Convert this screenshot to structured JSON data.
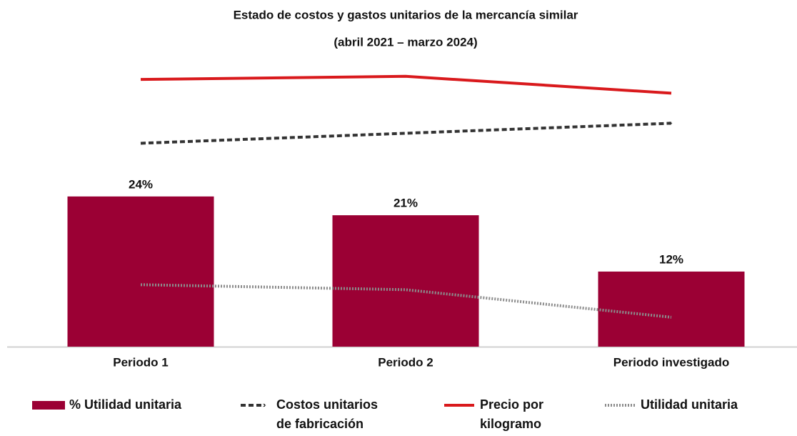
{
  "chart_data": {
    "type": "bar-line",
    "title": "Estado de costos y gastos unitarios de la mercancía similar",
    "subtitle": "(abril 2021 – marzo 2024)",
    "categories": [
      "Periodo 1",
      "Periodo 2",
      "Periodo investigado"
    ],
    "ylim": [
      0,
      45
    ],
    "series": [
      {
        "name": "% Utilidad unitaria",
        "type": "bar",
        "color": "#9b0034",
        "values": [
          24,
          21,
          12
        ],
        "value_labels": [
          "24%",
          "21%",
          "12%"
        ]
      },
      {
        "name": "Costos unitarios de fabricación",
        "type": "line",
        "color": "#333333",
        "dash": "dashed",
        "arrow": true,
        "values": [
          32.5,
          34.1,
          35.7
        ]
      },
      {
        "name": "Precio por kilogramo",
        "type": "line",
        "color": "#d9191c",
        "dash": "solid",
        "values": [
          42.7,
          43.2,
          40.5
        ]
      },
      {
        "name": "Utilidad unitaria",
        "type": "line",
        "color": "#8c8c8c",
        "dash": "dotted",
        "values": [
          9.9,
          9.1,
          4.7
        ]
      }
    ]
  }
}
